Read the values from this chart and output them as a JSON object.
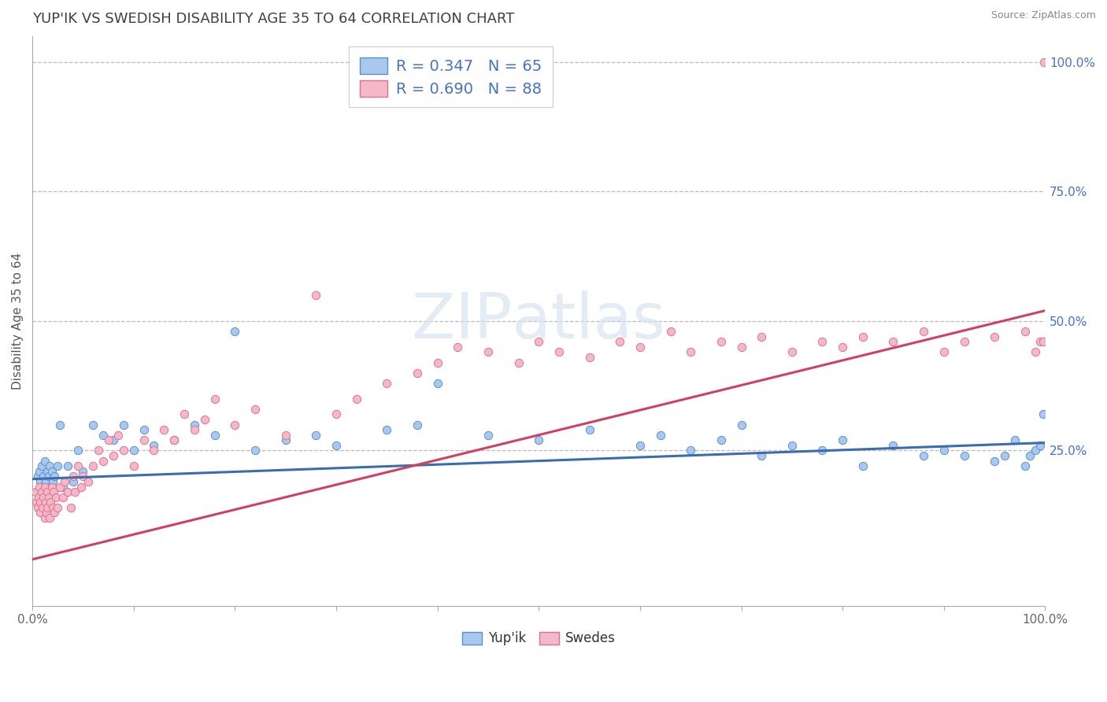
{
  "title": "YUP'IK VS SWEDISH DISABILITY AGE 35 TO 64 CORRELATION CHART",
  "source": "Source: ZipAtlas.com",
  "ylabel": "Disability Age 35 to 64",
  "xlim": [
    0.0,
    1.0
  ],
  "ylim": [
    -0.05,
    1.05
  ],
  "blue_color": "#A8C8F0",
  "blue_edge": "#5B8FC9",
  "blue_line": "#3A6CB0",
  "pink_color": "#F5B8C8",
  "pink_edge": "#E07090",
  "pink_line": "#D04060",
  "R_blue": 0.347,
  "N_blue": 65,
  "R_pink": 0.69,
  "N_pink": 88,
  "background_color": "#FFFFFF",
  "grid_color": "#BBBBBB",
  "title_color": "#404040",
  "axis_label_color": "#4472C4",
  "tick_label_color": "#666666",
  "watermark_color": "#D8E4F0",
  "blue_line_x": [
    0.0,
    1.0
  ],
  "blue_line_y": [
    0.195,
    0.265
  ],
  "pink_line_x": [
    0.0,
    1.0
  ],
  "pink_line_y": [
    0.04,
    0.52
  ],
  "blue_x": [
    0.005,
    0.007,
    0.008,
    0.009,
    0.01,
    0.011,
    0.012,
    0.013,
    0.015,
    0.016,
    0.017,
    0.018,
    0.019,
    0.02,
    0.022,
    0.025,
    0.027,
    0.03,
    0.035,
    0.04,
    0.045,
    0.05,
    0.06,
    0.07,
    0.08,
    0.09,
    0.1,
    0.11,
    0.12,
    0.14,
    0.16,
    0.18,
    0.2,
    0.22,
    0.25,
    0.28,
    0.3,
    0.35,
    0.38,
    0.4,
    0.45,
    0.5,
    0.55,
    0.6,
    0.62,
    0.65,
    0.68,
    0.7,
    0.72,
    0.75,
    0.78,
    0.8,
    0.82,
    0.85,
    0.88,
    0.9,
    0.92,
    0.95,
    0.96,
    0.97,
    0.98,
    0.985,
    0.99,
    0.995,
    0.998
  ],
  "blue_y": [
    0.2,
    0.21,
    0.19,
    0.22,
    0.18,
    0.2,
    0.23,
    0.19,
    0.21,
    0.2,
    0.22,
    0.18,
    0.21,
    0.19,
    0.2,
    0.22,
    0.3,
    0.18,
    0.22,
    0.19,
    0.25,
    0.21,
    0.3,
    0.28,
    0.27,
    0.3,
    0.25,
    0.29,
    0.26,
    0.27,
    0.3,
    0.28,
    0.48,
    0.25,
    0.27,
    0.28,
    0.26,
    0.29,
    0.3,
    0.38,
    0.28,
    0.27,
    0.29,
    0.26,
    0.28,
    0.25,
    0.27,
    0.3,
    0.24,
    0.26,
    0.25,
    0.27,
    0.22,
    0.26,
    0.24,
    0.25,
    0.24,
    0.23,
    0.24,
    0.27,
    0.22,
    0.24,
    0.25,
    0.26,
    0.32
  ],
  "pink_x": [
    0.003,
    0.004,
    0.005,
    0.006,
    0.007,
    0.008,
    0.008,
    0.009,
    0.01,
    0.011,
    0.012,
    0.012,
    0.013,
    0.014,
    0.015,
    0.015,
    0.016,
    0.017,
    0.018,
    0.019,
    0.02,
    0.021,
    0.022,
    0.023,
    0.025,
    0.027,
    0.03,
    0.032,
    0.035,
    0.038,
    0.04,
    0.042,
    0.045,
    0.048,
    0.05,
    0.055,
    0.06,
    0.065,
    0.07,
    0.075,
    0.08,
    0.085,
    0.09,
    0.1,
    0.11,
    0.12,
    0.13,
    0.14,
    0.15,
    0.16,
    0.17,
    0.18,
    0.2,
    0.22,
    0.25,
    0.28,
    0.3,
    0.32,
    0.35,
    0.38,
    0.4,
    0.42,
    0.45,
    0.48,
    0.5,
    0.52,
    0.55,
    0.58,
    0.6,
    0.63,
    0.65,
    0.68,
    0.7,
    0.72,
    0.75,
    0.78,
    0.8,
    0.82,
    0.85,
    0.88,
    0.9,
    0.92,
    0.95,
    0.98,
    0.99,
    0.995,
    0.998,
    0.999
  ],
  "pink_y": [
    0.17,
    0.15,
    0.14,
    0.16,
    0.18,
    0.13,
    0.15,
    0.17,
    0.14,
    0.16,
    0.12,
    0.18,
    0.15,
    0.13,
    0.17,
    0.14,
    0.16,
    0.12,
    0.15,
    0.18,
    0.14,
    0.17,
    0.13,
    0.16,
    0.14,
    0.18,
    0.16,
    0.19,
    0.17,
    0.14,
    0.2,
    0.17,
    0.22,
    0.18,
    0.2,
    0.19,
    0.22,
    0.25,
    0.23,
    0.27,
    0.24,
    0.28,
    0.25,
    0.22,
    0.27,
    0.25,
    0.29,
    0.27,
    0.32,
    0.29,
    0.31,
    0.35,
    0.3,
    0.33,
    0.28,
    0.55,
    0.32,
    0.35,
    0.38,
    0.4,
    0.42,
    0.45,
    0.44,
    0.42,
    0.46,
    0.44,
    0.43,
    0.46,
    0.45,
    0.48,
    0.44,
    0.46,
    0.45,
    0.47,
    0.44,
    0.46,
    0.45,
    0.47,
    0.46,
    0.48,
    0.44,
    0.46,
    0.47,
    0.48,
    0.44,
    0.46,
    0.46,
    1.0
  ]
}
